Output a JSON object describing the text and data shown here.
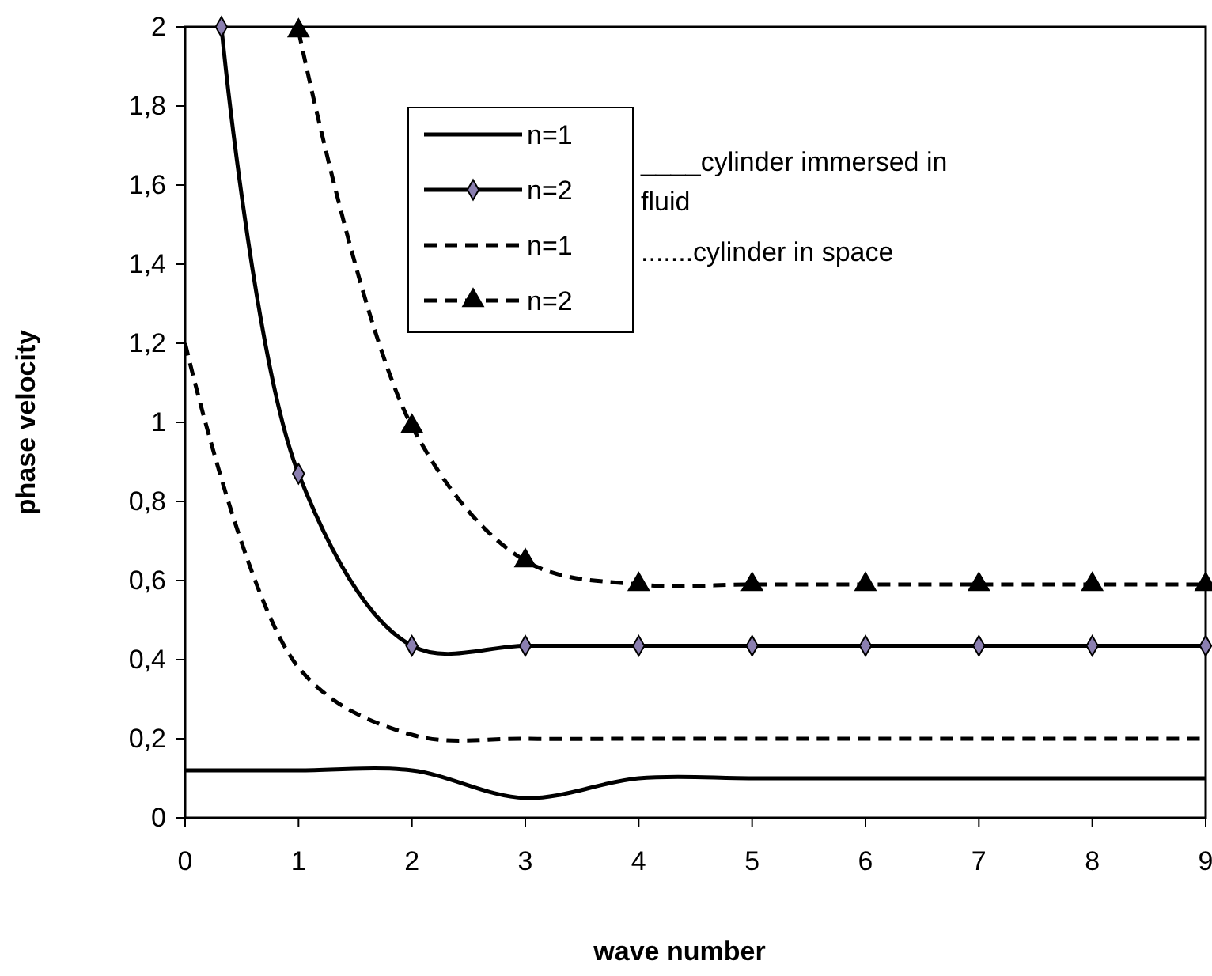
{
  "chart_data": {
    "type": "line",
    "xlabel": "wave number",
    "ylabel": "phase velocity",
    "x": [
      0,
      1,
      2,
      3,
      4,
      5,
      6,
      7,
      8,
      9
    ],
    "xlim": [
      0,
      9
    ],
    "xticks": [
      0,
      1,
      2,
      3,
      4,
      5,
      6,
      7,
      8,
      9
    ],
    "ylim": [
      0,
      2
    ],
    "yticks": [
      0,
      {
        "value": 0.2,
        "label": "0,2"
      },
      {
        "value": 0.4,
        "label": "0,4"
      },
      {
        "value": 0.6,
        "label": "0,6"
      },
      {
        "value": 0.8,
        "label": "0,8"
      },
      1,
      {
        "value": 1.2,
        "label": "1,2"
      },
      {
        "value": 1.4,
        "label": "1,4"
      },
      {
        "value": 1.6,
        "label": "1,6"
      },
      {
        "value": 1.8,
        "label": "1,8"
      },
      2
    ],
    "grid": false,
    "legend": "top",
    "series": [
      {
        "name": "n=1",
        "color": "#000000",
        "line_style": "solid",
        "marker": "none",
        "values": [
          0.12,
          0.12,
          0.12,
          0.05,
          0.1,
          0.1,
          0.1,
          0.1,
          0.1,
          0.1
        ]
      },
      {
        "name": "n=2",
        "color": "#000000",
        "line_style": "solid",
        "marker": "diamond",
        "x": [
          0.32,
          1,
          2,
          3,
          4,
          5,
          6,
          7,
          8,
          9
        ],
        "values": [
          2,
          0.87,
          0.435,
          0.435,
          0.435,
          0.435,
          0.435,
          0.435,
          0.435,
          0.435
        ]
      },
      {
        "name": "n=1",
        "color": "#000000",
        "line_style": "dashed",
        "marker": "none",
        "values": [
          1.2,
          0.38,
          0.21,
          0.2,
          0.2,
          0.2,
          0.2,
          0.2,
          0.2,
          0.2
        ]
      },
      {
        "name": "n=2",
        "color": "#000000",
        "line_style": "dashed",
        "marker": "triangle",
        "x": [
          1,
          2,
          3,
          4,
          5,
          6,
          7,
          8,
          9
        ],
        "values": [
          1.99,
          0.99,
          0.65,
          0.59,
          0.59,
          0.59,
          0.59,
          0.59,
          0.59
        ]
      }
    ],
    "annotations": [
      "____cylinder immersed in fluid",
      ".......cylinder in space"
    ]
  }
}
